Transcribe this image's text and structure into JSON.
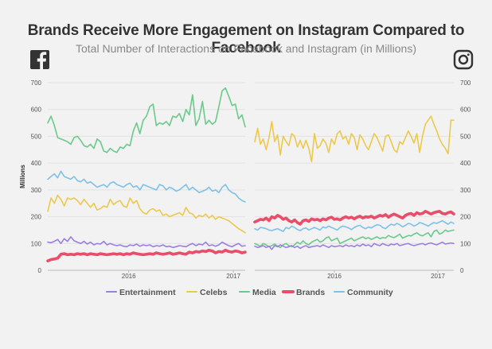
{
  "title": "Brands Receive More Engagement on Instagram Compared to Facebook",
  "subtitle": "Total Number of Interactions on Facebook and Instagram (in Millions)",
  "colors": {
    "Entertainment": "#9b7fe0",
    "Celebs": "#ecc94b",
    "Media": "#6bc98c",
    "Brands": "#e84d6a",
    "Community": "#7ec1e8"
  },
  "chart_data": [
    {
      "type": "line",
      "panel": "facebook",
      "icon": "facebook-icon",
      "ylabel": "Millions",
      "ylim": [
        0,
        700
      ],
      "yticks": [
        0,
        100,
        200,
        300,
        400,
        500,
        600,
        700
      ],
      "xlim": [
        0,
        100
      ],
      "xticks": [
        {
          "x": 41,
          "label": "2016"
        },
        {
          "x": 94,
          "label": "2017"
        }
      ],
      "series": [
        {
          "name": "Entertainment",
          "values": [
            105,
            103,
            108,
            115,
            100,
            118,
            108,
            125,
            110,
            105,
            100,
            108,
            98,
            105,
            95,
            100,
            98,
            108,
            95,
            100,
            95,
            92,
            95,
            90,
            88,
            95,
            92,
            98,
            90,
            95,
            92,
            95,
            88,
            92,
            90,
            95,
            88,
            90,
            85,
            88,
            92,
            90,
            88,
            95,
            100,
            92,
            98,
            95,
            105,
            92,
            95,
            90,
            95,
            105,
            98,
            92,
            88,
            95,
            100,
            90,
            92
          ]
        },
        {
          "name": "Celebs",
          "values": [
            220,
            270,
            250,
            280,
            265,
            240,
            270,
            265,
            270,
            260,
            245,
            265,
            250,
            235,
            250,
            225,
            230,
            240,
            235,
            265,
            245,
            255,
            260,
            240,
            235,
            270,
            250,
            260,
            230,
            215,
            210,
            225,
            230,
            220,
            225,
            205,
            210,
            200,
            205,
            210,
            215,
            205,
            235,
            215,
            210,
            195,
            205,
            200,
            210,
            195,
            205,
            190,
            200,
            195,
            190,
            185,
            175,
            165,
            155,
            148,
            140
          ]
        },
        {
          "name": "Media",
          "values": [
            550,
            575,
            540,
            495,
            490,
            485,
            480,
            470,
            495,
            500,
            485,
            465,
            460,
            470,
            455,
            490,
            480,
            445,
            440,
            455,
            445,
            440,
            460,
            455,
            470,
            465,
            520,
            550,
            510,
            560,
            575,
            610,
            620,
            540,
            550,
            545,
            555,
            540,
            575,
            570,
            585,
            555,
            600,
            580,
            655,
            540,
            565,
            630,
            545,
            560,
            545,
            555,
            610,
            670,
            680,
            650,
            615,
            620,
            565,
            580,
            535
          ]
        },
        {
          "name": "Brands",
          "values": [
            35,
            40,
            42,
            45,
            60,
            62,
            58,
            60,
            58,
            62,
            60,
            62,
            58,
            62,
            60,
            58,
            62,
            60,
            58,
            60,
            62,
            60,
            62,
            58,
            62,
            60,
            65,
            62,
            60,
            58,
            60,
            62,
            60,
            65,
            62,
            60,
            62,
            65,
            60,
            62,
            65,
            62,
            60,
            68,
            65,
            70,
            68,
            72,
            70,
            75,
            72,
            65,
            70,
            68,
            75,
            70,
            68,
            72,
            70,
            65,
            68
          ]
        },
        {
          "name": "Community",
          "values": [
            340,
            350,
            360,
            345,
            370,
            350,
            345,
            340,
            350,
            335,
            330,
            340,
            325,
            330,
            320,
            310,
            315,
            320,
            310,
            325,
            330,
            320,
            315,
            310,
            320,
            325,
            310,
            315,
            300,
            320,
            315,
            310,
            305,
            300,
            320,
            315,
            300,
            310,
            305,
            295,
            300,
            310,
            320,
            300,
            310,
            300,
            290,
            295,
            300,
            310,
            295,
            300,
            290,
            310,
            320,
            300,
            290,
            285,
            270,
            260,
            255
          ]
        }
      ]
    },
    {
      "type": "line",
      "panel": "instagram",
      "icon": "instagram-icon",
      "ylim": [
        0,
        700
      ],
      "yticks": [
        0,
        100,
        200,
        300,
        400,
        500,
        600,
        700
      ],
      "xlim": [
        0,
        100
      ],
      "xticks": [
        {
          "x": 40,
          "label": "2016"
        },
        {
          "x": 92,
          "label": "2017"
        }
      ],
      "series": [
        {
          "name": "Entertainment",
          "values": [
            90,
            85,
            88,
            92,
            85,
            90,
            78,
            92,
            88,
            95,
            90,
            85,
            88,
            92,
            85,
            90,
            82,
            88,
            92,
            85,
            88,
            90,
            92,
            88,
            95,
            90,
            85,
            92,
            88,
            90,
            92,
            88,
            95,
            90,
            92,
            88,
            95,
            90,
            98,
            92,
            95,
            88,
            100,
            95,
            92,
            100,
            95,
            92,
            98,
            95,
            100,
            92,
            95,
            98,
            100,
            95,
            92,
            95,
            98,
            100,
            95,
            100,
            102,
            98,
            95,
            100,
            105,
            98,
            100,
            102,
            100
          ]
        },
        {
          "name": "Celebs",
          "values": [
            480,
            530,
            470,
            490,
            450,
            495,
            555,
            480,
            505,
            430,
            500,
            480,
            465,
            510,
            500,
            460,
            485,
            455,
            485,
            455,
            405,
            510,
            455,
            465,
            490,
            475,
            440,
            490,
            470,
            510,
            520,
            490,
            500,
            470,
            510,
            495,
            450,
            505,
            490,
            465,
            450,
            480,
            510,
            495,
            470,
            445,
            500,
            505,
            480,
            450,
            440,
            480,
            470,
            495,
            520,
            500,
            475,
            510,
            440,
            500,
            545,
            560,
            575,
            545,
            520,
            490,
            470,
            455,
            435,
            560,
            560
          ]
        },
        {
          "name": "Media",
          "values": [
            100,
            95,
            90,
            100,
            95,
            88,
            92,
            98,
            90,
            85,
            95,
            100,
            92,
            88,
            95,
            105,
            98,
            110,
            100,
            95,
            105,
            110,
            115,
            105,
            110,
            120,
            125,
            110,
            115,
            120,
            100,
            105,
            110,
            115,
            120,
            110,
            115,
            120,
            125,
            118,
            122,
            115,
            120,
            125,
            118,
            122,
            120,
            130,
            125,
            122,
            128,
            135,
            120,
            125,
            130,
            128,
            135,
            140,
            132,
            128,
            135,
            140,
            125,
            145,
            150,
            135,
            140,
            150,
            145,
            148,
            150
          ]
        },
        {
          "name": "Brands",
          "values": [
            180,
            185,
            190,
            188,
            195,
            185,
            200,
            195,
            205,
            200,
            190,
            195,
            185,
            180,
            188,
            178,
            172,
            185,
            188,
            182,
            192,
            188,
            190,
            185,
            192,
            188,
            195,
            198,
            190,
            192,
            188,
            195,
            200,
            195,
            198,
            192,
            198,
            202,
            195,
            200,
            198,
            202,
            195,
            200,
            205,
            202,
            208,
            198,
            205,
            210,
            205,
            200,
            195,
            205,
            210,
            212,
            205,
            215,
            210,
            212,
            220,
            215,
            210,
            215,
            218,
            220,
            212,
            210,
            215,
            218,
            210
          ]
        },
        {
          "name": "Community",
          "values": [
            155,
            150,
            160,
            158,
            155,
            150,
            148,
            152,
            155,
            150,
            145,
            160,
            155,
            165,
            160,
            152,
            148,
            155,
            158,
            150,
            155,
            160,
            155,
            150,
            162,
            158,
            165,
            160,
            155,
            150,
            160,
            165,
            162,
            158,
            152,
            160,
            165,
            168,
            160,
            155,
            162,
            158,
            165,
            170,
            168,
            160,
            155,
            165,
            172,
            168,
            175,
            170,
            162,
            168,
            175,
            172,
            165,
            170,
            178,
            175,
            170,
            165,
            172,
            178,
            175,
            180,
            185,
            178,
            172,
            180,
            175
          ]
        }
      ]
    }
  ]
}
